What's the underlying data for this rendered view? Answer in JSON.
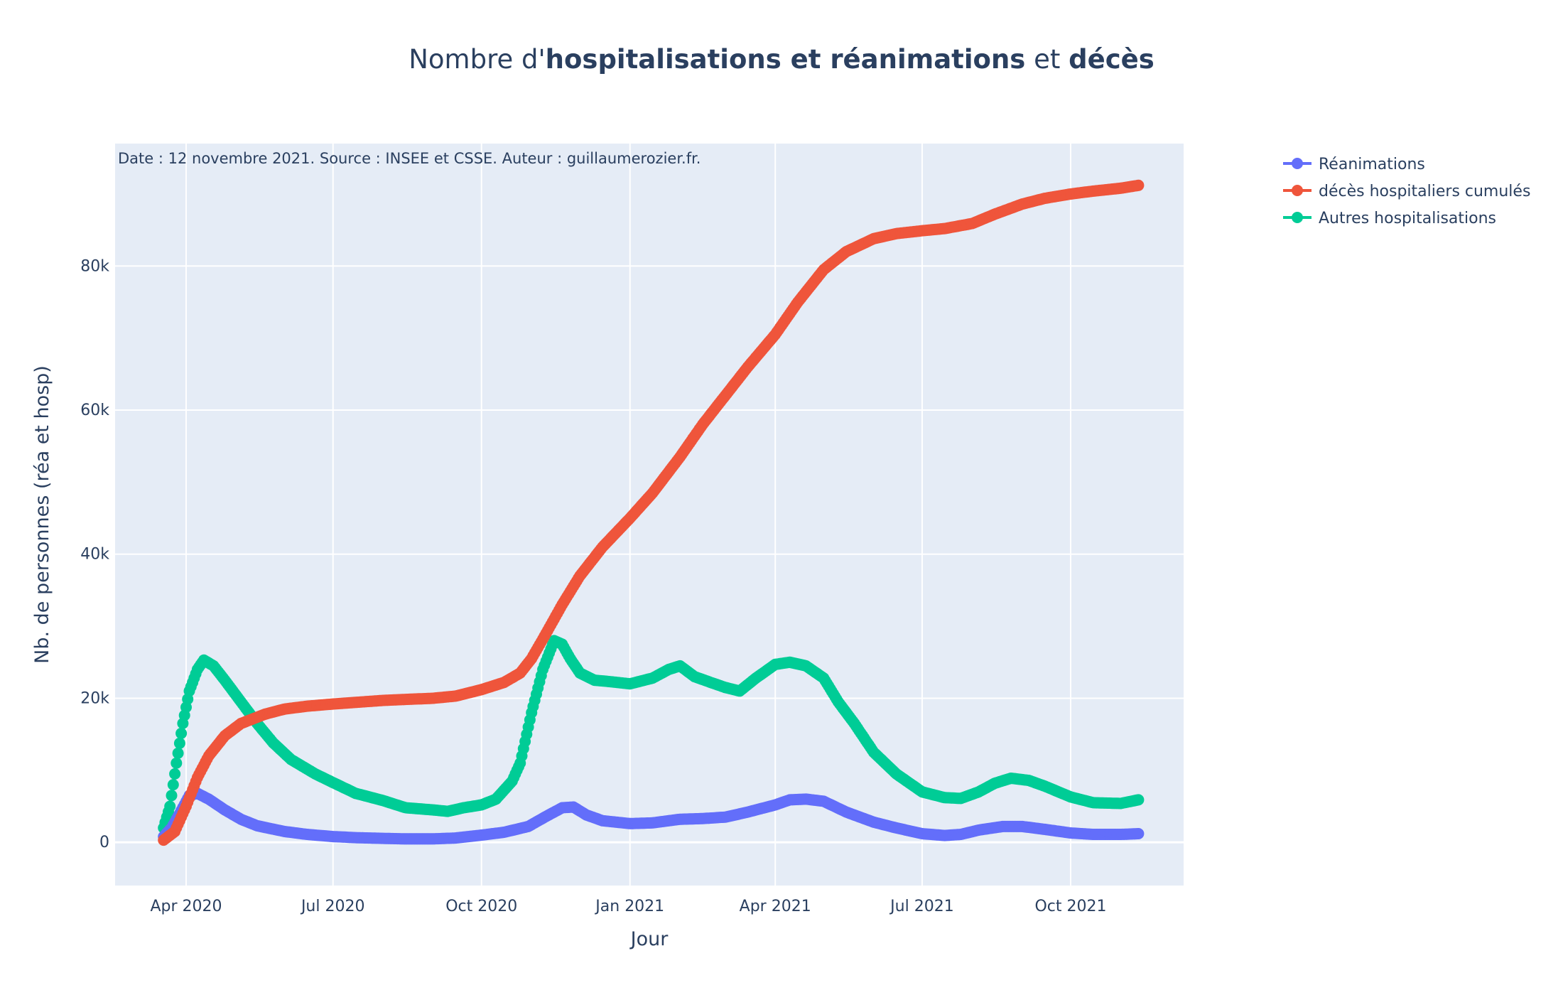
{
  "chart_data": {
    "type": "line",
    "title": {
      "prefix": "Nombre d'",
      "bold1": "hospitalisations et réanimations",
      "middle": " et ",
      "bold2": "décès"
    },
    "annotation": "Date : 12 novembre 2021. Source : INSEE et CSSE. Auteur : guillaumerozier.fr.",
    "xlabel": "Jour",
    "ylabel": "Nb. de personnes (réa et hosp)",
    "x_range": [
      "2020-02-17",
      "2021-12-10"
    ],
    "ylim": [
      -6000,
      97000
    ],
    "x_ticks": [
      {
        "date": "2020-04-01",
        "label": "Apr 2020"
      },
      {
        "date": "2020-07-01",
        "label": "Jul 2020"
      },
      {
        "date": "2020-10-01",
        "label": "Oct 2020"
      },
      {
        "date": "2021-01-01",
        "label": "Jan 2021"
      },
      {
        "date": "2021-04-01",
        "label": "Apr 2021"
      },
      {
        "date": "2021-07-01",
        "label": "Jul 2021"
      },
      {
        "date": "2021-10-01",
        "label": "Oct 2021"
      }
    ],
    "y_ticks": [
      {
        "value": 0,
        "label": "0"
      },
      {
        "value": 20000,
        "label": "20k"
      },
      {
        "value": 40000,
        "label": "40k"
      },
      {
        "value": 60000,
        "label": "60k"
      },
      {
        "value": 80000,
        "label": "80k"
      }
    ],
    "grid": true,
    "legend_position": "top-right",
    "series": [
      {
        "name": "Réanimations",
        "color": "#636efa",
        "points": [
          [
            "2020-03-18",
            800
          ],
          [
            "2020-03-23",
            2000
          ],
          [
            "2020-03-28",
            4000
          ],
          [
            "2020-04-03",
            6500
          ],
          [
            "2020-04-08",
            6800
          ],
          [
            "2020-04-15",
            6000
          ],
          [
            "2020-04-25",
            4500
          ],
          [
            "2020-05-05",
            3200
          ],
          [
            "2020-05-15",
            2300
          ],
          [
            "2020-06-01",
            1500
          ],
          [
            "2020-06-15",
            1100
          ],
          [
            "2020-07-01",
            800
          ],
          [
            "2020-07-15",
            650
          ],
          [
            "2020-08-01",
            550
          ],
          [
            "2020-08-15",
            480
          ],
          [
            "2020-09-01",
            480
          ],
          [
            "2020-09-15",
            600
          ],
          [
            "2020-10-01",
            1000
          ],
          [
            "2020-10-15",
            1400
          ],
          [
            "2020-10-30",
            2200
          ],
          [
            "2020-11-10",
            3600
          ],
          [
            "2020-11-20",
            4800
          ],
          [
            "2020-11-27",
            4900
          ],
          [
            "2020-12-05",
            3800
          ],
          [
            "2020-12-15",
            3000
          ],
          [
            "2021-01-01",
            2600
          ],
          [
            "2021-01-15",
            2700
          ],
          [
            "2021-02-01",
            3200
          ],
          [
            "2021-02-15",
            3300
          ],
          [
            "2021-03-01",
            3500
          ],
          [
            "2021-03-15",
            4200
          ],
          [
            "2021-04-01",
            5200
          ],
          [
            "2021-04-10",
            5900
          ],
          [
            "2021-04-20",
            6000
          ],
          [
            "2021-05-01",
            5700
          ],
          [
            "2021-05-15",
            4200
          ],
          [
            "2021-06-01",
            2800
          ],
          [
            "2021-06-15",
            2000
          ],
          [
            "2021-07-01",
            1200
          ],
          [
            "2021-07-15",
            950
          ],
          [
            "2021-07-25",
            1100
          ],
          [
            "2021-08-05",
            1700
          ],
          [
            "2021-08-20",
            2200
          ],
          [
            "2021-09-01",
            2200
          ],
          [
            "2021-09-15",
            1800
          ],
          [
            "2021-10-01",
            1300
          ],
          [
            "2021-10-15",
            1100
          ],
          [
            "2021-11-01",
            1100
          ],
          [
            "2021-11-12",
            1200
          ]
        ]
      },
      {
        "name": "décès hospitaliers cumulés",
        "color": "#ef553b",
        "points": [
          [
            "2020-03-18",
            300
          ],
          [
            "2020-03-25",
            1500
          ],
          [
            "2020-04-01",
            5000
          ],
          [
            "2020-04-08",
            9000
          ],
          [
            "2020-04-15",
            12000
          ],
          [
            "2020-04-25",
            14800
          ],
          [
            "2020-05-05",
            16500
          ],
          [
            "2020-05-20",
            17800
          ],
          [
            "2020-06-01",
            18500
          ],
          [
            "2020-06-15",
            18900
          ],
          [
            "2020-07-01",
            19200
          ],
          [
            "2020-08-01",
            19700
          ],
          [
            "2020-09-01",
            20000
          ],
          [
            "2020-09-15",
            20300
          ],
          [
            "2020-10-01",
            21200
          ],
          [
            "2020-10-15",
            22200
          ],
          [
            "2020-10-25",
            23500
          ],
          [
            "2020-11-01",
            25500
          ],
          [
            "2020-11-10",
            29000
          ],
          [
            "2020-11-20",
            33000
          ],
          [
            "2020-12-01",
            37000
          ],
          [
            "2020-12-15",
            41000
          ],
          [
            "2021-01-01",
            45000
          ],
          [
            "2021-01-15",
            48500
          ],
          [
            "2021-02-01",
            53500
          ],
          [
            "2021-02-15",
            58000
          ],
          [
            "2021-03-01",
            62000
          ],
          [
            "2021-03-15",
            66000
          ],
          [
            "2021-04-01",
            70500
          ],
          [
            "2021-04-15",
            75000
          ],
          [
            "2021-05-01",
            79500
          ],
          [
            "2021-05-15",
            82000
          ],
          [
            "2021-06-01",
            83800
          ],
          [
            "2021-06-15",
            84500
          ],
          [
            "2021-07-01",
            84900
          ],
          [
            "2021-07-15",
            85200
          ],
          [
            "2021-08-01",
            85900
          ],
          [
            "2021-08-15",
            87200
          ],
          [
            "2021-09-01",
            88600
          ],
          [
            "2021-09-15",
            89400
          ],
          [
            "2021-10-01",
            90000
          ],
          [
            "2021-10-15",
            90400
          ],
          [
            "2021-11-01",
            90800
          ],
          [
            "2021-11-12",
            91200
          ]
        ]
      },
      {
        "name": "Autres hospitalisations",
        "color": "#00cc96",
        "points": [
          [
            "2020-03-18",
            2000
          ],
          [
            "2020-03-22",
            5000
          ],
          [
            "2020-03-26",
            11000
          ],
          [
            "2020-03-30",
            16500
          ],
          [
            "2020-04-03",
            21000
          ],
          [
            "2020-04-08",
            24000
          ],
          [
            "2020-04-12",
            25300
          ],
          [
            "2020-04-18",
            24500
          ],
          [
            "2020-04-25",
            22500
          ],
          [
            "2020-05-05",
            19500
          ],
          [
            "2020-05-15",
            16500
          ],
          [
            "2020-05-25",
            13800
          ],
          [
            "2020-06-05",
            11500
          ],
          [
            "2020-06-20",
            9500
          ],
          [
            "2020-07-01",
            8300
          ],
          [
            "2020-07-15",
            6800
          ],
          [
            "2020-08-01",
            5800
          ],
          [
            "2020-08-15",
            4800
          ],
          [
            "2020-09-01",
            4500
          ],
          [
            "2020-09-10",
            4300
          ],
          [
            "2020-09-20",
            4800
          ],
          [
            "2020-10-01",
            5200
          ],
          [
            "2020-10-10",
            6000
          ],
          [
            "2020-10-20",
            8500
          ],
          [
            "2020-10-25",
            11000
          ],
          [
            "2020-11-01",
            18000
          ],
          [
            "2020-11-08",
            24000
          ],
          [
            "2020-11-15",
            28000
          ],
          [
            "2020-11-20",
            27500
          ],
          [
            "2020-11-25",
            25500
          ],
          [
            "2020-12-01",
            23500
          ],
          [
            "2020-12-10",
            22500
          ],
          [
            "2020-12-20",
            22300
          ],
          [
            "2021-01-01",
            22000
          ],
          [
            "2021-01-15",
            22800
          ],
          [
            "2021-01-25",
            24000
          ],
          [
            "2021-02-01",
            24500
          ],
          [
            "2021-02-10",
            23000
          ],
          [
            "2021-02-20",
            22200
          ],
          [
            "2021-03-01",
            21500
          ],
          [
            "2021-03-10",
            21000
          ],
          [
            "2021-03-20",
            22800
          ],
          [
            "2021-04-01",
            24700
          ],
          [
            "2021-04-10",
            25000
          ],
          [
            "2021-04-20",
            24500
          ],
          [
            "2021-05-01",
            22800
          ],
          [
            "2021-05-10",
            19500
          ],
          [
            "2021-05-20",
            16500
          ],
          [
            "2021-06-01",
            12500
          ],
          [
            "2021-06-15",
            9500
          ],
          [
            "2021-07-01",
            7000
          ],
          [
            "2021-07-15",
            6200
          ],
          [
            "2021-07-25",
            6100
          ],
          [
            "2021-08-05",
            7000
          ],
          [
            "2021-08-15",
            8200
          ],
          [
            "2021-08-25",
            8900
          ],
          [
            "2021-09-05",
            8600
          ],
          [
            "2021-09-15",
            7800
          ],
          [
            "2021-10-01",
            6300
          ],
          [
            "2021-10-15",
            5500
          ],
          [
            "2021-11-01",
            5400
          ],
          [
            "2021-11-12",
            5900
          ]
        ]
      }
    ]
  }
}
